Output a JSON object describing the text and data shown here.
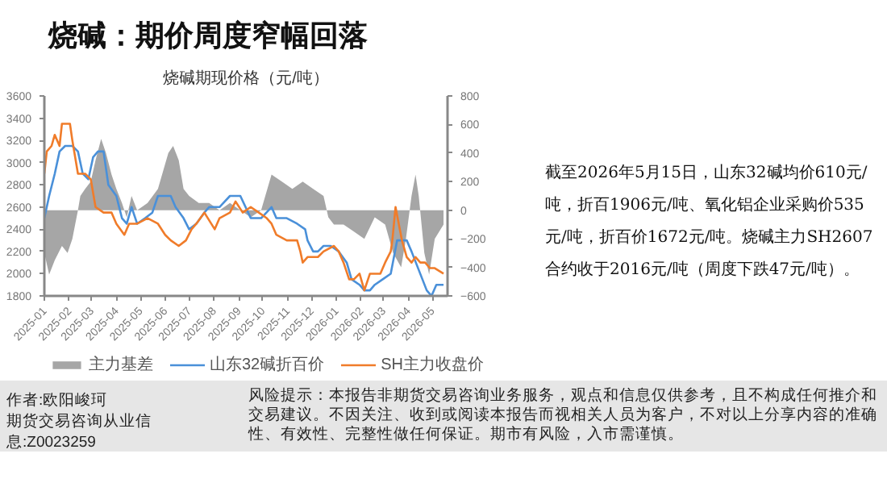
{
  "chart_data": {
    "type": "line",
    "title": "烧碱期现价格（元/吨）",
    "annotations": [
      "烧碱：期价周度窄幅回落",
      "截至2026年5月15日，山东32碱均价610元/吨，折百1906元/吨、氧化铝企业采购价535元/吨，折百价1672元/吨。烧碱主力SH2607合约收于2016元/吨（周度下跌47元/吨）。",
      "作者:欧阳峻珂",
      "期货交易咨询从业信息:Z0023259",
      "风险提示：本报告非期货交易咨询业务服务，观点和信息仅供参考，且不构成任何推介和交易建议。不因关注、收到或阅读本报告而视相关人员为客户，不对以上分享内容的准确性、有效性、完整性做任何保证。期市有风险，入市需谨慎。"
    ],
    "xlim": [
      "2025-01-01",
      "2026-05-20"
    ],
    "xticks": [
      "2025-01",
      "2025-02",
      "2025-03",
      "2025-04",
      "2025-05",
      "2025-06",
      "2025-07",
      "2025-08",
      "2025-09",
      "2025-10",
      "2025-11",
      "2025-12",
      "2026-01",
      "2026-02",
      "2026-03",
      "2026-04",
      "2026-05"
    ],
    "ylim": [
      1800,
      3600
    ],
    "yticks": [
      1800,
      2000,
      2200,
      2400,
      2600,
      2800,
      3000,
      3200,
      3400,
      3600
    ],
    "y2lim": [
      -600,
      800
    ],
    "y2ticks": [
      -600,
      -400,
      -200,
      0,
      200,
      400,
      600,
      800
    ],
    "grid": false,
    "legend": "bottom",
    "series": [
      {
        "name": "主力基差",
        "type": "area",
        "axis": "y2",
        "color": "#a6a6a6",
        "x": [
          "2025-01-01",
          "2025-01-07",
          "2025-01-14",
          "2025-01-23",
          "2025-01-30",
          "2025-02-05",
          "2025-02-12",
          "2025-02-15",
          "2025-02-21",
          "2025-02-28",
          "2025-03-06",
          "2025-03-13",
          "2025-03-19",
          "2025-03-26",
          "2025-04-01",
          "2025-04-08",
          "2025-04-14",
          "2025-04-20",
          "2025-04-27",
          "2025-05-10",
          "2025-05-23",
          "2025-06-05",
          "2025-06-11",
          "2025-06-18",
          "2025-06-24",
          "2025-07-01",
          "2025-07-13",
          "2025-07-26",
          "2025-08-08",
          "2025-08-21",
          "2025-09-03",
          "2025-09-16",
          "2025-09-29",
          "2025-10-12",
          "2025-10-25",
          "2025-11-07",
          "2025-11-20",
          "2025-12-03",
          "2025-12-16",
          "2025-12-22",
          "2025-12-29",
          "2026-01-10",
          "2026-01-23",
          "2026-02-05",
          "2026-02-18",
          "2026-03-03",
          "2026-03-13",
          "2026-03-23",
          "2026-03-29",
          "2026-04-05",
          "2026-04-10",
          "2026-04-14",
          "2026-04-21",
          "2026-04-27",
          "2026-05-04",
          "2026-05-15"
        ],
        "values": [
          -300,
          -450,
          -350,
          -250,
          -300,
          -200,
          0,
          100,
          150,
          200,
          350,
          500,
          400,
          250,
          150,
          50,
          -50,
          100,
          0,
          50,
          150,
          400,
          450,
          350,
          150,
          100,
          50,
          50,
          0,
          50,
          0,
          -50,
          0,
          250,
          200,
          150,
          200,
          150,
          100,
          -50,
          -100,
          -100,
          -150,
          -200,
          -50,
          -100,
          -300,
          -400,
          -200,
          100,
          250,
          100,
          -300,
          -450,
          -200,
          -100
        ]
      },
      {
        "name": "山东32碱折百价",
        "color": "#4a90d9",
        "x": [
          "2025-01-01",
          "2025-01-07",
          "2025-01-14",
          "2025-01-20",
          "2025-01-27",
          "2025-02-05",
          "2025-02-12",
          "2025-02-18",
          "2025-02-25",
          "2025-03-03",
          "2025-03-09",
          "2025-03-16",
          "2025-03-22",
          "2025-04-01",
          "2025-04-08",
          "2025-04-14",
          "2025-04-20",
          "2025-04-27",
          "2025-05-07",
          "2025-05-16",
          "2025-05-23",
          "2025-06-01",
          "2025-06-08",
          "2025-06-14",
          "2025-06-24",
          "2025-07-01",
          "2025-07-10",
          "2025-07-20",
          "2025-07-26",
          "2025-08-08",
          "2025-08-21",
          "2025-09-03",
          "2025-09-16",
          "2025-09-29",
          "2025-10-12",
          "2025-10-18",
          "2025-10-31",
          "2025-11-13",
          "2025-11-23",
          "2025-11-26",
          "2025-12-03",
          "2025-12-09",
          "2025-12-16",
          "2025-12-25",
          "2026-01-04",
          "2026-01-14",
          "2026-01-20",
          "2026-01-30",
          "2026-02-05",
          "2026-02-12",
          "2026-02-18",
          "2026-02-28",
          "2026-03-10",
          "2026-03-18",
          "2026-03-24",
          "2026-03-30",
          "2026-04-05",
          "2026-04-24",
          "2026-04-30",
          "2026-05-06",
          "2026-05-15"
        ],
        "values": [
          2500,
          2700,
          2900,
          3100,
          3150,
          3150,
          3100,
          2900,
          2850,
          3050,
          3100,
          3100,
          2800,
          2700,
          2500,
          2450,
          2600,
          2450,
          2500,
          2550,
          2700,
          2700,
          2700,
          2600,
          2500,
          2400,
          2450,
          2550,
          2600,
          2600,
          2700,
          2700,
          2500,
          2500,
          2600,
          2500,
          2500,
          2450,
          2400,
          2300,
          2200,
          2200,
          2250,
          2250,
          2200,
          2100,
          1950,
          1900,
          1850,
          1850,
          1900,
          1950,
          2000,
          2300,
          2300,
          2300,
          2200,
          1850,
          1800,
          1900,
          1900
        ]
      },
      {
        "name": "SH主力收盘价",
        "color": "#f07c2a",
        "x": [
          "2025-01-01",
          "2025-01-04",
          "2025-01-10",
          "2025-01-14",
          "2025-01-20",
          "2025-01-23",
          "2025-02-02",
          "2025-02-05",
          "2025-02-12",
          "2025-02-21",
          "2025-02-28",
          "2025-03-06",
          "2025-03-16",
          "2025-03-26",
          "2025-04-01",
          "2025-04-11",
          "2025-04-17",
          "2025-04-27",
          "2025-05-10",
          "2025-05-23",
          "2025-06-01",
          "2025-06-08",
          "2025-06-18",
          "2025-06-27",
          "2025-07-04",
          "2025-07-10",
          "2025-07-20",
          "2025-08-02",
          "2025-08-08",
          "2025-08-21",
          "2025-08-28",
          "2025-09-06",
          "2025-09-16",
          "2025-09-26",
          "2025-10-06",
          "2025-10-12",
          "2025-10-18",
          "2025-10-31",
          "2025-11-07",
          "2025-11-13",
          "2025-11-17",
          "2025-11-20",
          "2025-11-26",
          "2025-12-09",
          "2025-12-16",
          "2025-12-29",
          "2026-01-04",
          "2026-01-10",
          "2026-01-17",
          "2026-01-23",
          "2026-01-30",
          "2026-02-05",
          "2026-02-12",
          "2026-02-18",
          "2026-02-25",
          "2026-03-03",
          "2026-03-10",
          "2026-03-12",
          "2026-03-16",
          "2026-03-20",
          "2026-03-24",
          "2026-03-30",
          "2026-04-05",
          "2026-04-10",
          "2026-04-16",
          "2026-04-22",
          "2026-04-28",
          "2026-05-04",
          "2026-05-15"
        ],
        "values": [
          2900,
          3100,
          3150,
          3250,
          3150,
          3350,
          3350,
          3200,
          2900,
          2900,
          2850,
          2600,
          2550,
          2550,
          2450,
          2350,
          2450,
          2450,
          2500,
          2450,
          2350,
          2300,
          2250,
          2300,
          2400,
          2450,
          2550,
          2400,
          2500,
          2550,
          2650,
          2550,
          2600,
          2550,
          2500,
          2450,
          2350,
          2300,
          2300,
          2300,
          2200,
          2100,
          2150,
          2150,
          2200,
          2250,
          2200,
          2100,
          1950,
          1950,
          2000,
          1850,
          2000,
          2000,
          2000,
          2100,
          2200,
          2300,
          2600,
          2450,
          2300,
          2150,
          2100,
          2150,
          2100,
          2100,
          2050,
          2050,
          2000
        ]
      }
    ]
  }
}
